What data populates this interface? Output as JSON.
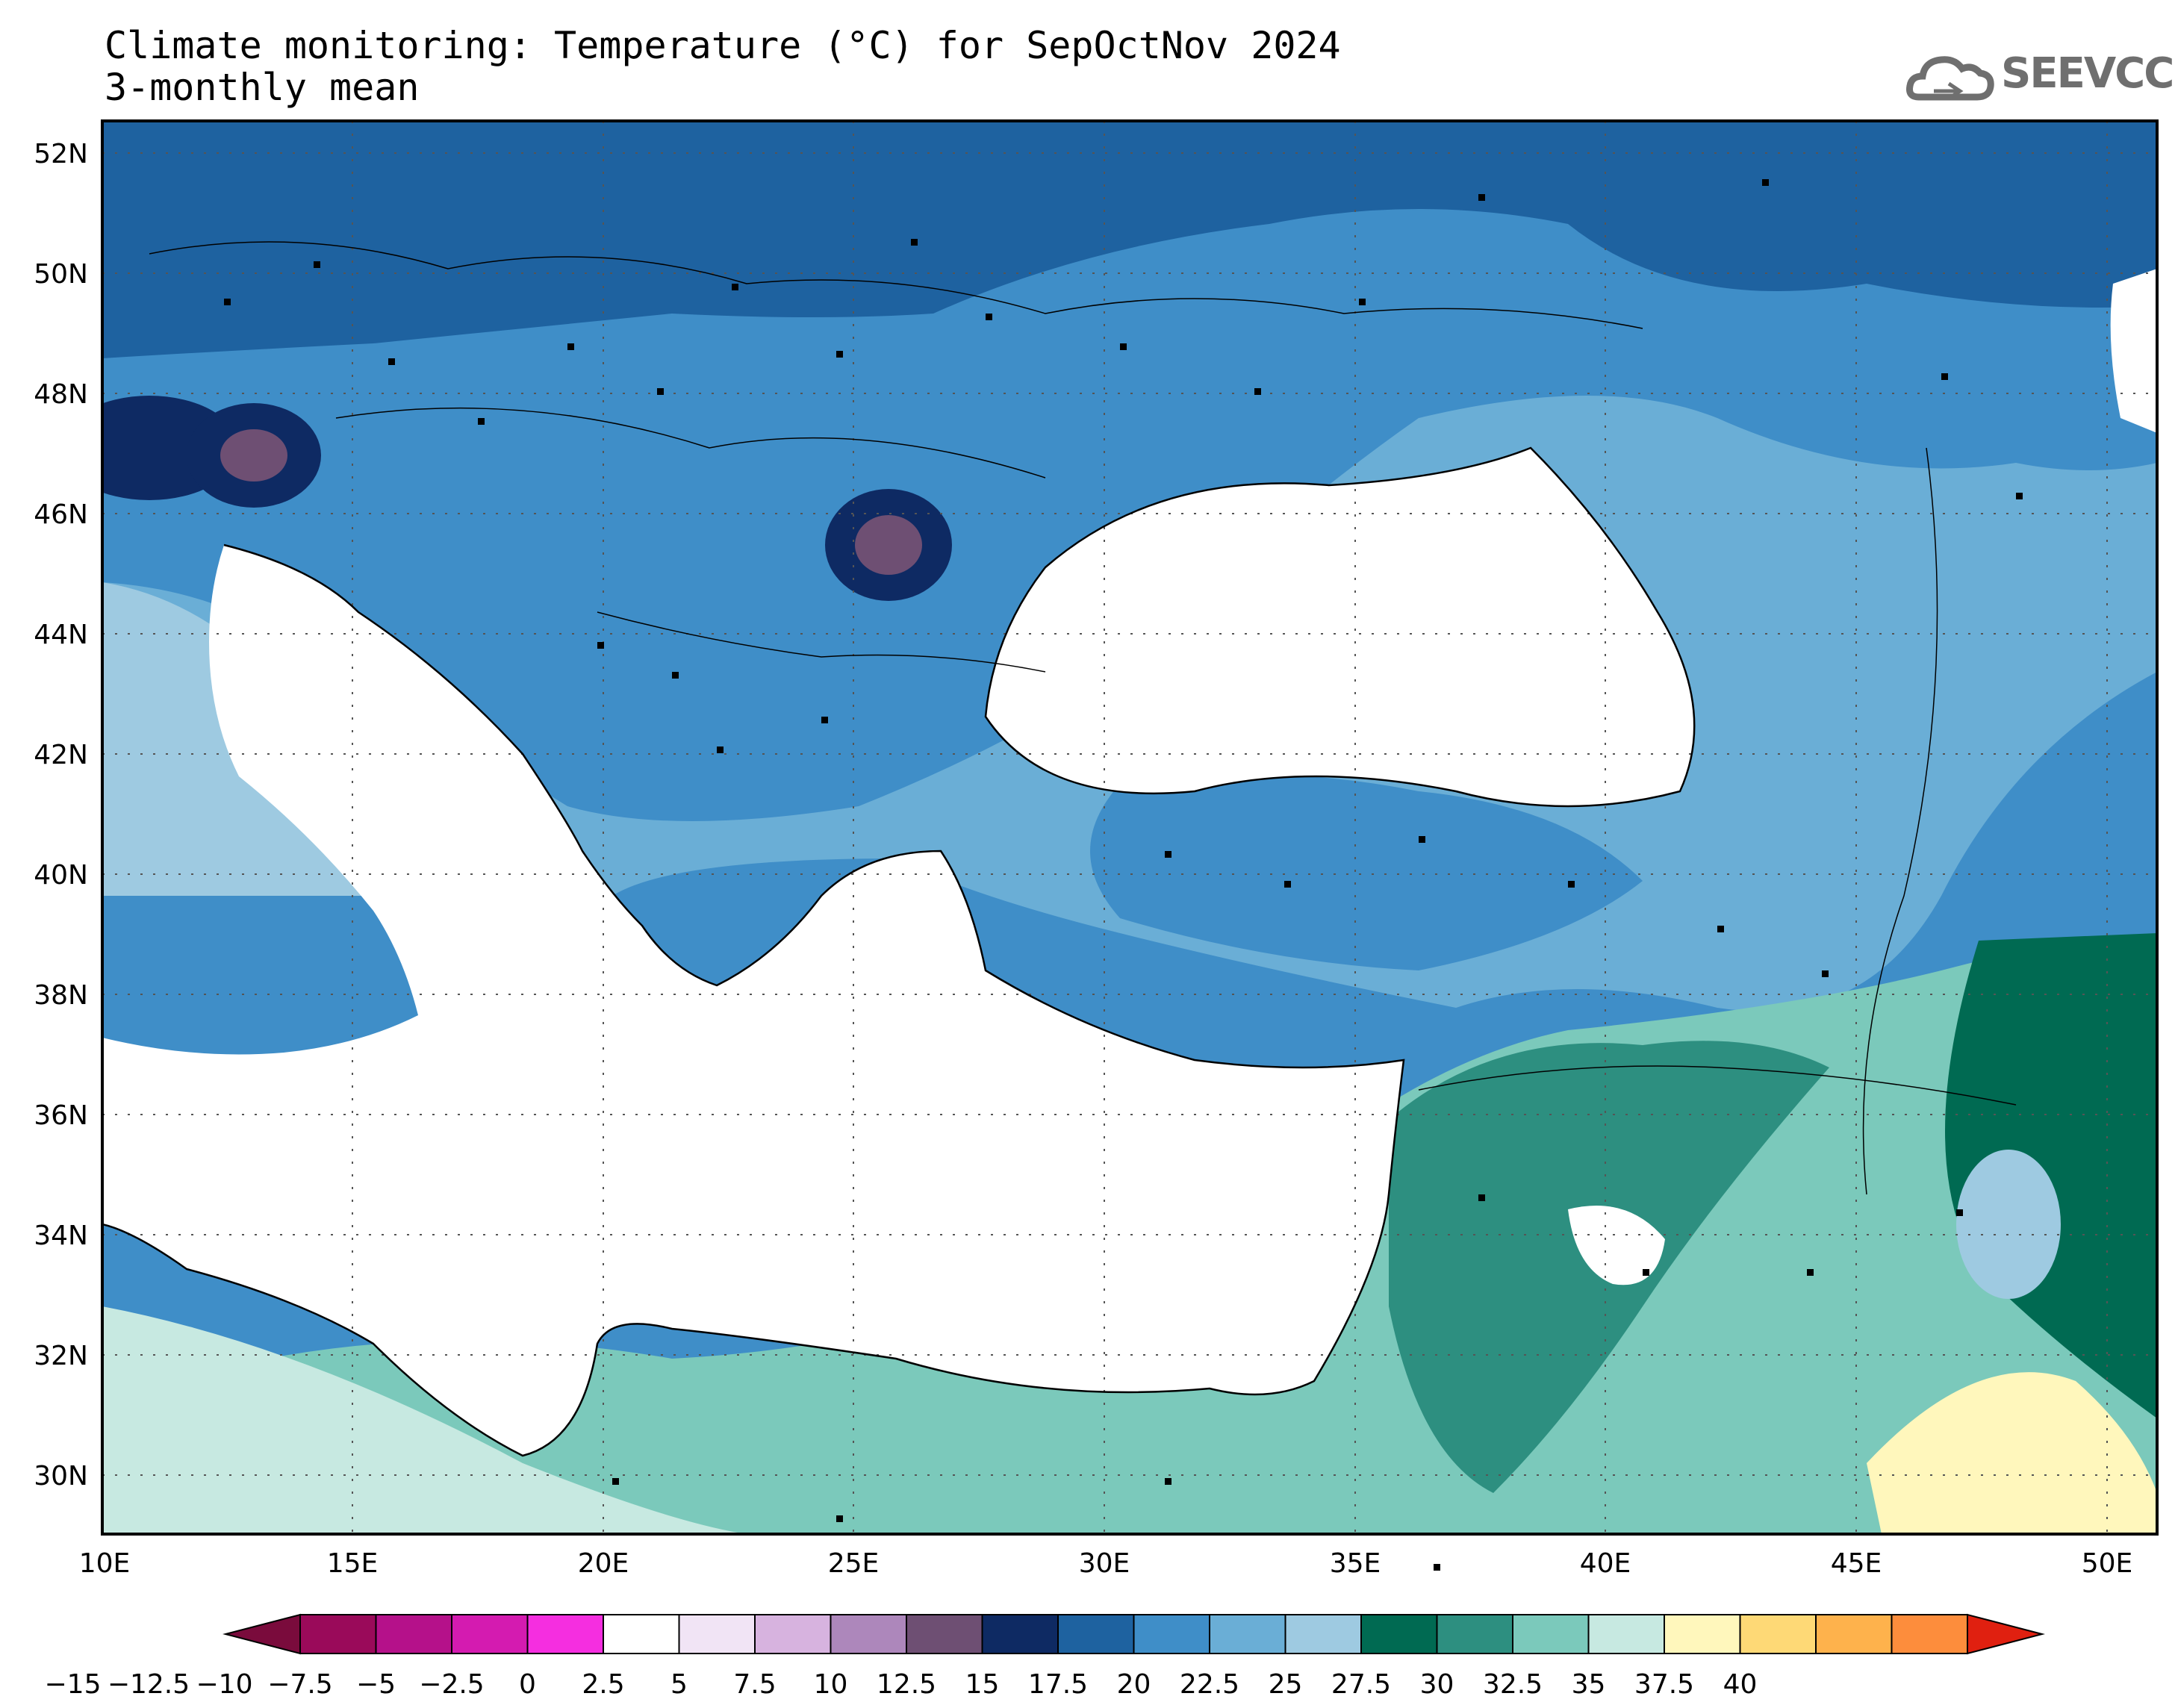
{
  "title": {
    "line1": "Climate monitoring: Temperature (°C) for SepOctNov 2024",
    "line2": "3-monthly mean"
  },
  "logo": {
    "text": "SEEVCCC",
    "icon": "cloud-logo-icon"
  },
  "map": {
    "x_labels": [
      "10E",
      "15E",
      "20E",
      "25E",
      "30E",
      "35E",
      "40E",
      "45E",
      "50E"
    ],
    "y_labels": [
      "52N",
      "50N",
      "48N",
      "46N",
      "44N",
      "42N",
      "40N",
      "38N",
      "36N",
      "34N",
      "32N",
      "30N"
    ]
  },
  "colorbar": {
    "labels": [
      "-15",
      "-12.5",
      "-10",
      "-7.5",
      "-5",
      "-2.5",
      "0",
      "2.5",
      "5",
      "7.5",
      "10",
      "12.5",
      "15",
      "17.5",
      "20",
      "22.5",
      "25",
      "27.5",
      "30",
      "32.5",
      "35",
      "37.5",
      "40"
    ],
    "colors": [
      "#9a0a5a",
      "#b5118a",
      "#d41bb0",
      "#f52ee0",
      "#ffffff",
      "#f1e4f5",
      "#d7b3df",
      "#ad87bb",
      "#6e4f73",
      "#0e2a63",
      "#1e62a0",
      "#3f8ec8",
      "#6aaed6",
      "#9ecae1",
      "#006a52",
      "#2d8f80",
      "#7bc9bb",
      "#c7e9e1",
      "#fff7bc",
      "#fed976",
      "#feb24c",
      "#fd8d3c",
      "#f03b20"
    ],
    "under_color": "#7a0b3c",
    "over_color": "#e02010"
  }
}
